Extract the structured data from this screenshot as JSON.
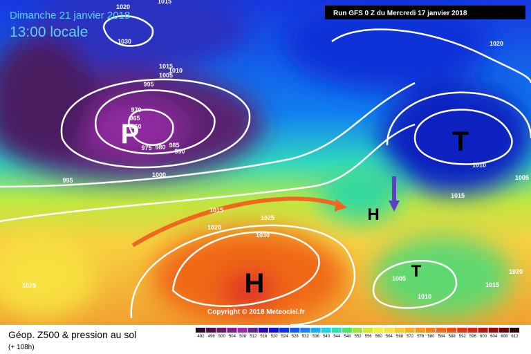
{
  "header": {
    "date": "Dimanche 21 janvier 2018",
    "time": "13:00 locale",
    "run": "Run GFS 0 Z du Mercredi 17 janvier 2018",
    "copyright": "Copyright © 2018 Meteociel.fr"
  },
  "footer": {
    "title": "Géop. Z500 & pression au sol",
    "lead": "(+ 108h)"
  },
  "isobar_labels": [
    1020,
    1015,
    1030,
    1015,
    1010,
    1005,
    995,
    970,
    965,
    960,
    975,
    980,
    985,
    990,
    1000,
    995,
    1015,
    1020,
    1025,
    1030,
    1025,
    1010,
    1015,
    1005,
    1005,
    1010,
    1015,
    1020,
    1020
  ],
  "centers": [
    "P",
    "T",
    "H",
    "H",
    "T"
  ],
  "scale": {
    "labels": [
      492,
      496,
      500,
      504,
      508,
      512,
      516,
      520,
      524,
      528,
      532,
      536,
      540,
      544,
      548,
      552,
      556,
      560,
      564,
      568,
      572,
      576,
      580,
      584,
      588,
      592,
      596,
      600,
      604,
      608,
      612
    ],
    "colors": [
      "#2a0a2a",
      "#4a1048",
      "#661a66",
      "#7e1e86",
      "#9a2aa8",
      "#5a2a8a",
      "#2a0ab0",
      "#1010d0",
      "#1030e8",
      "#1858f0",
      "#2080f0",
      "#20a8f0",
      "#20d0e8",
      "#30e0b0",
      "#50e070",
      "#a0e040",
      "#d0e830",
      "#f0f040",
      "#f8e040",
      "#f8c830",
      "#f8b028",
      "#f09820",
      "#f08020",
      "#f06818",
      "#e85018",
      "#e03818",
      "#d02818",
      "#b01810",
      "#901010",
      "#600808",
      "#200000"
    ]
  }
}
